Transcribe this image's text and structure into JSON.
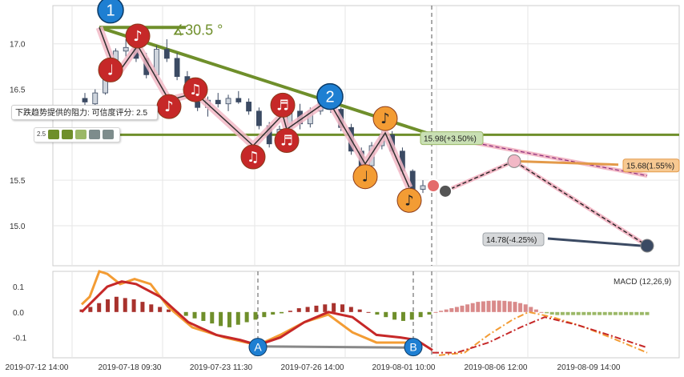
{
  "chart_data": {
    "type": "candlestick",
    "main": {
      "yticks": [
        "17.0",
        "16.5",
        "16.0",
        "15.5",
        "15.0"
      ],
      "ytick_values": [
        17.0,
        16.5,
        16.0,
        15.5,
        15.0
      ],
      "ylim": [
        14.56,
        17.42
      ],
      "horizontal_level": 16.0,
      "trend_angle_label": "∡30.5 °",
      "wave_markers": [
        "1",
        "2"
      ],
      "candles": [
        {
          "o": 16.4,
          "h": 16.46,
          "l": 16.32,
          "c": 16.36
        },
        {
          "o": 16.34,
          "h": 16.5,
          "l": 16.3,
          "c": 16.46
        },
        {
          "o": 16.46,
          "h": 16.7,
          "l": 16.44,
          "c": 16.66
        },
        {
          "o": 16.66,
          "h": 16.95,
          "l": 16.62,
          "c": 16.92
        },
        {
          "o": 16.92,
          "h": 17.05,
          "l": 16.86,
          "c": 16.96
        },
        {
          "o": 16.96,
          "h": 17.1,
          "l": 16.8,
          "c": 16.84
        },
        {
          "o": 16.84,
          "h": 16.9,
          "l": 16.62,
          "c": 16.66
        },
        {
          "o": 16.66,
          "h": 16.98,
          "l": 16.62,
          "c": 16.94
        },
        {
          "o": 16.94,
          "h": 17.05,
          "l": 16.8,
          "c": 16.84
        },
        {
          "o": 16.84,
          "h": 16.9,
          "l": 16.6,
          "c": 16.64
        },
        {
          "o": 16.64,
          "h": 16.7,
          "l": 16.42,
          "c": 16.46
        },
        {
          "o": 16.46,
          "h": 16.52,
          "l": 16.26,
          "c": 16.3
        },
        {
          "o": 16.3,
          "h": 16.42,
          "l": 16.2,
          "c": 16.38
        },
        {
          "o": 16.38,
          "h": 16.46,
          "l": 16.3,
          "c": 16.34
        },
        {
          "o": 16.34,
          "h": 16.44,
          "l": 16.26,
          "c": 16.4
        },
        {
          "o": 16.4,
          "h": 16.48,
          "l": 16.34,
          "c": 16.36
        },
        {
          "o": 16.36,
          "h": 16.4,
          "l": 16.22,
          "c": 16.26
        },
        {
          "o": 16.26,
          "h": 16.3,
          "l": 16.06,
          "c": 16.1
        },
        {
          "o": 16.1,
          "h": 16.14,
          "l": 15.86,
          "c": 15.9
        },
        {
          "o": 15.9,
          "h": 16.1,
          "l": 15.84,
          "c": 16.06
        },
        {
          "o": 16.06,
          "h": 16.3,
          "l": 16.02,
          "c": 16.26
        },
        {
          "o": 16.26,
          "h": 16.34,
          "l": 16.06,
          "c": 16.12
        },
        {
          "o": 16.12,
          "h": 16.3,
          "l": 16.08,
          "c": 16.26
        },
        {
          "o": 16.26,
          "h": 16.46,
          "l": 16.22,
          "c": 16.42
        },
        {
          "o": 16.42,
          "h": 16.46,
          "l": 16.24,
          "c": 16.28
        },
        {
          "o": 16.28,
          "h": 16.3,
          "l": 16.04,
          "c": 16.08
        },
        {
          "o": 16.08,
          "h": 16.12,
          "l": 15.78,
          "c": 15.82
        },
        {
          "o": 15.82,
          "h": 15.86,
          "l": 15.62,
          "c": 15.66
        },
        {
          "o": 15.66,
          "h": 15.92,
          "l": 15.62,
          "c": 15.88
        },
        {
          "o": 15.88,
          "h": 16.04,
          "l": 15.84,
          "c": 16.0
        },
        {
          "o": 16.0,
          "h": 16.04,
          "l": 15.78,
          "c": 15.82
        },
        {
          "o": 15.82,
          "h": 15.86,
          "l": 15.56,
          "c": 15.6
        },
        {
          "o": 15.6,
          "h": 15.62,
          "l": 15.36,
          "c": 15.4
        },
        {
          "o": 15.4,
          "h": 15.5,
          "l": 15.36,
          "c": 15.44
        }
      ],
      "forecasts": [
        {
          "label": "15.98(+3.50%)",
          "value": 15.98
        },
        {
          "label": "15.68(1.55%)",
          "value": 15.68
        },
        {
          "label": "14.78(-4.25%)",
          "value": 14.78
        }
      ],
      "note_markers": [
        "quarter",
        "eighth",
        "beamed"
      ]
    },
    "macd": {
      "label": "MACD (12,26,9)",
      "yticks": [
        "0.1",
        "0.0",
        "-0.1"
      ],
      "ytick_values": [
        0.1,
        0.0,
        -0.1
      ],
      "ylim": [
        -0.18,
        0.16
      ],
      "points": [
        "A",
        "B"
      ],
      "histogram": [
        0.01,
        0.02,
        0.035,
        0.05,
        0.06,
        0.055,
        0.05,
        0.04,
        0.03,
        0.02,
        0.01,
        -0.005,
        -0.015,
        -0.025,
        -0.035,
        -0.045,
        -0.055,
        -0.06,
        -0.05,
        -0.04,
        -0.03,
        -0.02,
        -0.01,
        -0.005,
        0.005,
        0.015,
        0.02,
        0.025,
        0.03,
        0.035,
        0.03,
        0.02,
        0.01,
        0.0,
        -0.01,
        -0.02,
        -0.03,
        -0.035,
        -0.03,
        -0.02,
        -0.01
      ],
      "forecast_histogram": [
        0.0,
        0.005,
        0.01,
        0.015,
        0.02,
        0.025,
        0.03,
        0.035,
        0.04,
        0.042,
        0.044,
        0.045,
        0.045,
        0.044,
        0.042,
        0.04,
        0.035,
        0.03,
        0.02,
        0.01,
        0.0,
        -0.005,
        -0.01,
        -0.012,
        -0.012,
        -0.012,
        -0.012,
        -0.012,
        -0.012,
        -0.012,
        -0.012,
        -0.012,
        -0.012,
        -0.012,
        -0.012,
        -0.012,
        -0.012,
        -0.012,
        -0.012,
        -0.012,
        -0.012
      ]
    },
    "xticks": [
      "2019-07-12 14:00",
      "2019-07-18 09:30",
      "2019-07-23 11:30",
      "2019-07-26 14:00",
      "2019-08-01 10:00",
      "2019-08-06 12:00",
      "2019-08-09 14:00"
    ]
  },
  "tooltip": {
    "text": "下跌趋势提供的阻力: 可信度评分: 2.5",
    "value": "2.5"
  },
  "colors": {
    "green": "#6f8f2b",
    "red": "#c62828",
    "orange": "#f39c34",
    "blue": "#1e7fd2",
    "pink": "#f2b8c6",
    "macd_up": "#a8322d",
    "macd_down": "#6f8f2b",
    "forecast_up": "#d98a8a",
    "forecast_down": "#9bb867"
  }
}
